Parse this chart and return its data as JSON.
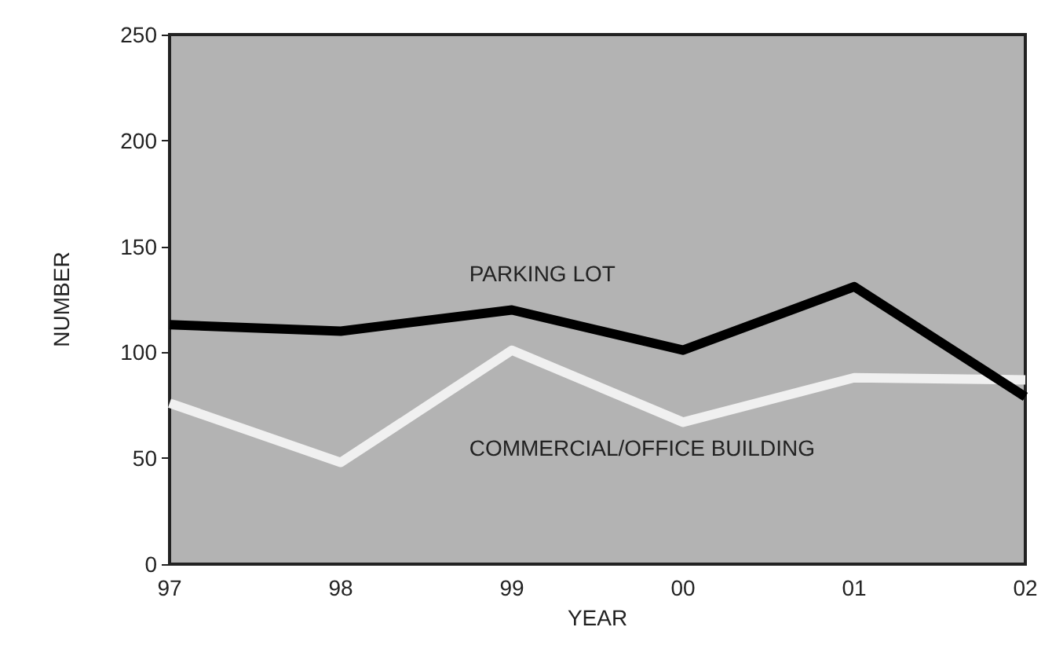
{
  "chart_data": {
    "type": "line",
    "xlabel": "YEAR",
    "ylabel": "NUMBER",
    "categories": [
      "97",
      "98",
      "99",
      "00",
      "01",
      "02"
    ],
    "ylim": [
      0,
      250
    ],
    "yticks": [
      0,
      50,
      100,
      150,
      200,
      250
    ],
    "grid": false,
    "legend": false,
    "marker": "none",
    "line_style": "solid",
    "series": [
      {
        "name": "PARKING LOT",
        "color": "#000000",
        "values": [
          113,
          110,
          120,
          101,
          131,
          79
        ]
      },
      {
        "name": "COMMERCIAL/OFFICE BUILDING",
        "color": "#f0f0f0",
        "values": [
          76,
          48,
          101,
          67,
          88,
          87
        ]
      }
    ]
  }
}
